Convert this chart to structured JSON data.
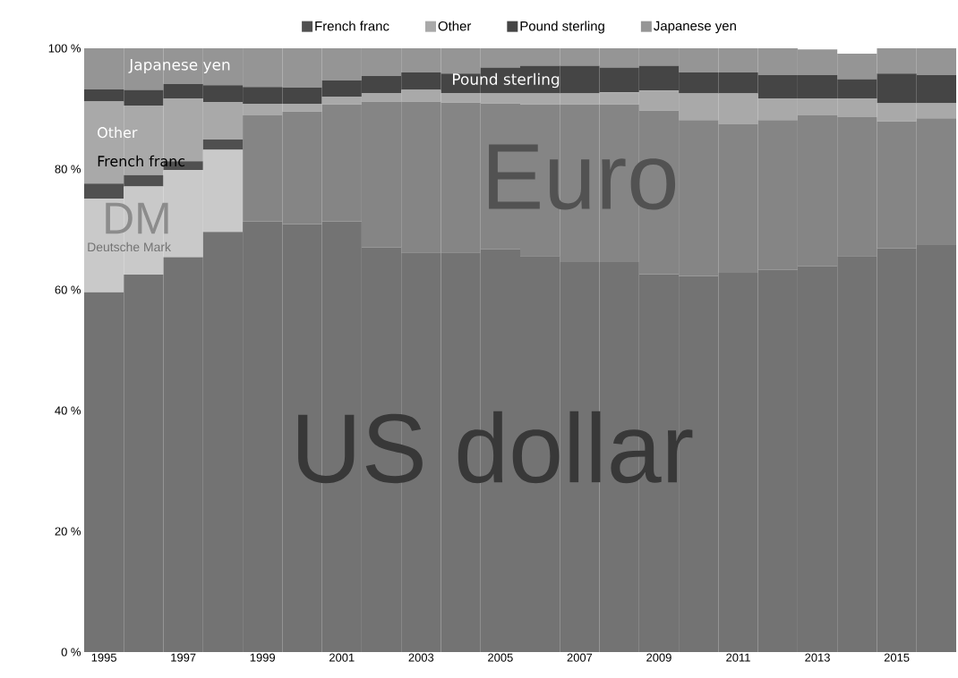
{
  "chart_data": {
    "type": "bar",
    "stacked": true,
    "legend": "top",
    "categories": [
      "1995",
      null,
      "1997",
      null,
      "1999",
      null,
      "2001",
      null,
      "2003",
      null,
      "2005",
      null,
      "2007",
      null,
      "2009",
      null,
      "2011",
      null,
      "2013",
      null,
      "2015",
      null
    ],
    "ylim": [
      0,
      100
    ],
    "yticks": [
      {
        "value": 0,
        "label": "0 %"
      },
      {
        "value": 20,
        "label": "20 %"
      },
      {
        "value": 40,
        "label": "40 %"
      },
      {
        "value": 60,
        "label": "60 %"
      },
      {
        "value": 80,
        "label": "80 %"
      },
      {
        "value": 100,
        "label": "100 %"
      }
    ],
    "series": [
      {
        "color": "#737373",
        "values": [
          59.6,
          62.5,
          65.4,
          69.6,
          71.3,
          70.9,
          71.3,
          67.0,
          66.2,
          66.2,
          66.7,
          65.6,
          64.6,
          64.6,
          62.6,
          62.3,
          62.8,
          63.3,
          63.9,
          65.6,
          66.9,
          67.4
        ]
      },
      {
        "color": "#c9c9c9",
        "values": [
          15.5,
          14.6,
          14.4,
          13.6,
          null,
          null,
          null,
          null,
          null,
          null,
          null,
          null,
          null,
          null,
          null,
          null,
          null,
          null,
          null,
          null,
          null,
          null
        ]
      },
      {
        "name": "French franc",
        "color": "#505050",
        "values": [
          2.5,
          1.9,
          1.5,
          1.7,
          null,
          null,
          null,
          null,
          null,
          null,
          null,
          null,
          null,
          null,
          null,
          null,
          null,
          null,
          null,
          null,
          null,
          null
        ]
      },
      {
        "color": "#858585",
        "values": [
          null,
          null,
          null,
          null,
          17.6,
          18.6,
          19.4,
          24.2,
          25.0,
          24.8,
          24.2,
          25.1,
          26.1,
          26.1,
          27.1,
          25.8,
          24.6,
          24.8,
          25.0,
          23.0,
          21.0,
          21.0
        ]
      },
      {
        "name": "Other",
        "color": "#a9a9a9",
        "values": [
          13.6,
          11.5,
          10.4,
          6.2,
          1.9,
          1.3,
          1.3,
          1.4,
          1.9,
          1.6,
          1.6,
          1.8,
          1.8,
          2.0,
          3.3,
          4.4,
          5.1,
          3.6,
          2.8,
          3.1,
          3.0,
          2.5
        ]
      },
      {
        "name": "Pound sterling",
        "color": "#454545",
        "values": [
          2.0,
          2.6,
          2.4,
          2.8,
          2.8,
          2.7,
          2.7,
          2.8,
          2.9,
          3.2,
          4.3,
          4.6,
          4.6,
          4.1,
          4.1,
          3.5,
          3.5,
          3.9,
          3.9,
          3.2,
          4.9,
          4.7
        ]
      },
      {
        "name": "Japanese yen",
        "color": "#959595",
        "values": [
          6.8,
          6.9,
          5.9,
          6.1,
          6.4,
          6.5,
          5.3,
          4.6,
          4.0,
          4.2,
          3.2,
          2.9,
          2.9,
          3.2,
          2.9,
          4.0,
          4.0,
          4.4,
          4.2,
          4.2,
          4.2,
          4.4
        ]
      }
    ],
    "annotations": [
      "Japanese yen",
      "Pound sterling",
      "Other",
      "French franc",
      "DM",
      "Deutsche Mark",
      "Euro",
      "US dollar"
    ]
  }
}
